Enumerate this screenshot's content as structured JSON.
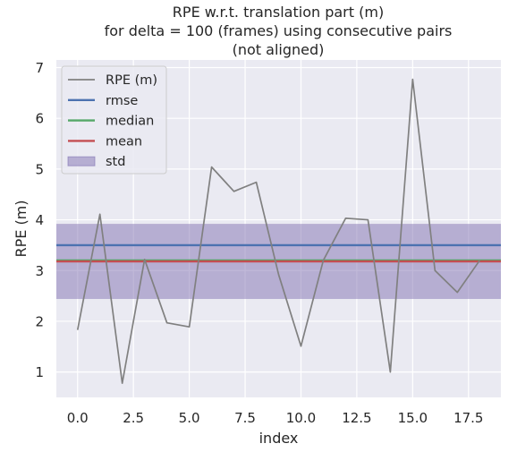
{
  "chart_data": {
    "type": "line",
    "title_lines": [
      "RPE w.r.t. translation part (m)",
      "for delta = 100 (frames) using consecutive pairs",
      "(not aligned)"
    ],
    "xlabel": "index",
    "ylabel": "RPE (m)",
    "xlim": [
      -0.95,
      18.95
    ],
    "ylim": [
      0.5,
      7.15
    ],
    "x_ticks": [
      0,
      2.5,
      5,
      7.5,
      10,
      12.5,
      15,
      17.5
    ],
    "x_tick_labels": [
      "0.0",
      "2.5",
      "5.0",
      "7.5",
      "10.0",
      "12.5",
      "15.0",
      "17.5"
    ],
    "y_ticks": [
      1,
      2,
      3,
      4,
      5,
      6,
      7
    ],
    "y_tick_labels": [
      "1",
      "2",
      "3",
      "4",
      "5",
      "6",
      "7"
    ],
    "grid": true,
    "legend_position": "top-left",
    "series": [
      {
        "name": "RPE (m)",
        "kind": "line",
        "color": "#808080",
        "x": [
          0,
          1,
          2,
          3,
          4,
          5,
          6,
          7,
          8,
          9,
          10,
          11,
          12,
          13,
          14,
          15,
          16,
          17,
          18
        ],
        "y": [
          1.83,
          4.11,
          0.78,
          3.22,
          1.97,
          1.89,
          5.04,
          4.56,
          4.74,
          2.92,
          1.51,
          3.2,
          4.03,
          4.0,
          1.0,
          6.77,
          3.0,
          2.57,
          3.2
        ]
      },
      {
        "name": "rmse",
        "kind": "hline",
        "color": "#4c72b0",
        "value": 3.5
      },
      {
        "name": "median",
        "kind": "hline",
        "color": "#55a868",
        "value": 3.2
      },
      {
        "name": "mean",
        "kind": "hline",
        "color": "#c44e52",
        "value": 3.18
      },
      {
        "name": "std",
        "kind": "band",
        "color": "#8172b2",
        "lower": 2.44,
        "upper": 3.92
      }
    ]
  }
}
